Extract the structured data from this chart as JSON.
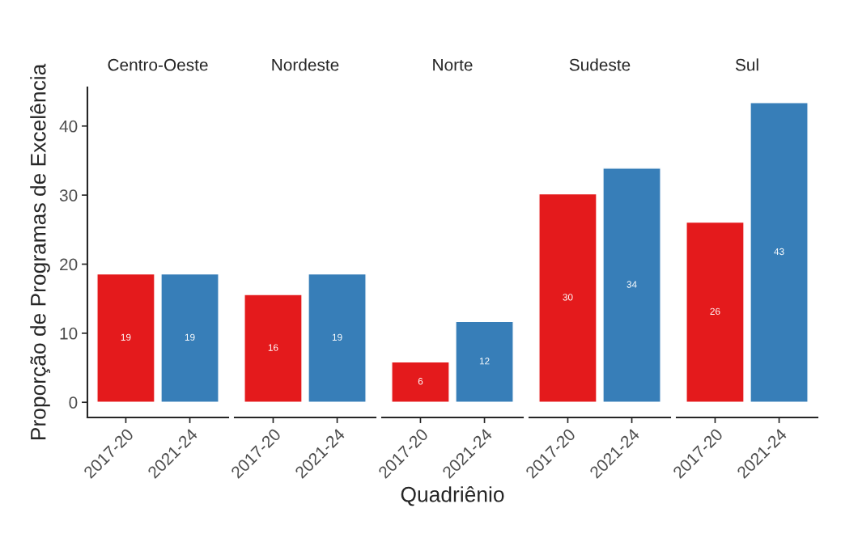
{
  "chart_data": [
    {
      "type": "bar",
      "title": "Centro-Oeste",
      "ylabel": "Proporção de Programas de Excelência",
      "categories": [
        "2017-20",
        "2021-24"
      ],
      "values": [
        18.6,
        18.6
      ],
      "value_labels": [
        "19",
        "19"
      ],
      "colors": [
        "#e41a1c",
        "#377eb8"
      ],
      "ylim": [
        -2.2,
        45.6
      ],
      "yticks": [
        0,
        10,
        20,
        30,
        40
      ],
      "grid": false,
      "legend": false
    },
    {
      "type": "bar",
      "title": "Nordeste",
      "categories": [
        "2017-20",
        "2021-24"
      ],
      "values": [
        15.6,
        18.6
      ],
      "value_labels": [
        "16",
        "19"
      ],
      "colors": [
        "#e41a1c",
        "#377eb8"
      ],
      "tick_labels": "x",
      "grid": false,
      "legend": false
    },
    {
      "type": "bar",
      "title": "Norte",
      "xlabel": "Quadriênio",
      "categories": [
        "2017-20",
        "2021-24"
      ],
      "values": [
        5.85,
        11.7
      ],
      "value_labels": [
        "6",
        "12"
      ],
      "colors": [
        "#e41a1c",
        "#377eb8"
      ],
      "tick_labels": "x",
      "grid": false,
      "legend": false
    },
    {
      "type": "bar",
      "title": "Sudeste",
      "categories": [
        "2017-20",
        "2021-24"
      ],
      "values": [
        30.2,
        33.9
      ],
      "value_labels": [
        "30",
        "34"
      ],
      "colors": [
        "#e41a1c",
        "#377eb8"
      ],
      "tick_labels": "x",
      "grid": false,
      "legend": false
    },
    {
      "type": "bar",
      "title": "Sul",
      "categories": [
        "2017-20",
        "2021-24"
      ],
      "values": [
        26.1,
        43.4
      ],
      "value_labels": [
        "26",
        "43"
      ],
      "colors": [
        "#e41a1c",
        "#377eb8"
      ],
      "tick_labels": "x",
      "grid": false,
      "legend": false
    }
  ]
}
